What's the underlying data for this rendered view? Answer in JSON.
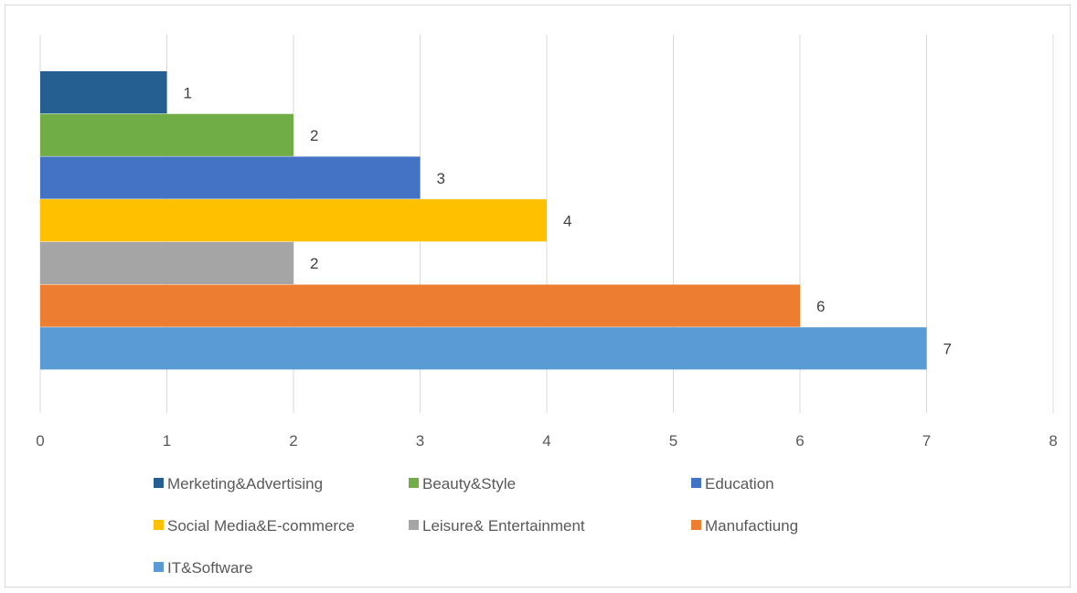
{
  "chart_data": {
    "type": "bar",
    "orientation": "horizontal",
    "title": "",
    "xlabel": "",
    "ylabel": "",
    "xlim": [
      0,
      8
    ],
    "x_ticks": [
      0,
      1,
      2,
      3,
      4,
      5,
      6,
      7,
      8
    ],
    "grid": "vertical",
    "legend_position": "bottom",
    "data_labels": true,
    "series": [
      {
        "name": "Merketing&Advertising",
        "value": 1,
        "color": "#255e91"
      },
      {
        "name": "Beauty&Style",
        "value": 2,
        "color": "#70ad47"
      },
      {
        "name": "Education",
        "value": 3,
        "color": "#4472c4"
      },
      {
        "name": "Social Media&E-commerce",
        "value": 4,
        "color": "#ffc000"
      },
      {
        "name": "Leisure& Entertainment",
        "value": 2,
        "color": "#a5a5a5"
      },
      {
        "name": "Manufactiung",
        "value": 6,
        "color": "#ed7d31"
      },
      {
        "name": "IT&Software",
        "value": 7,
        "color": "#5b9bd5"
      }
    ]
  }
}
